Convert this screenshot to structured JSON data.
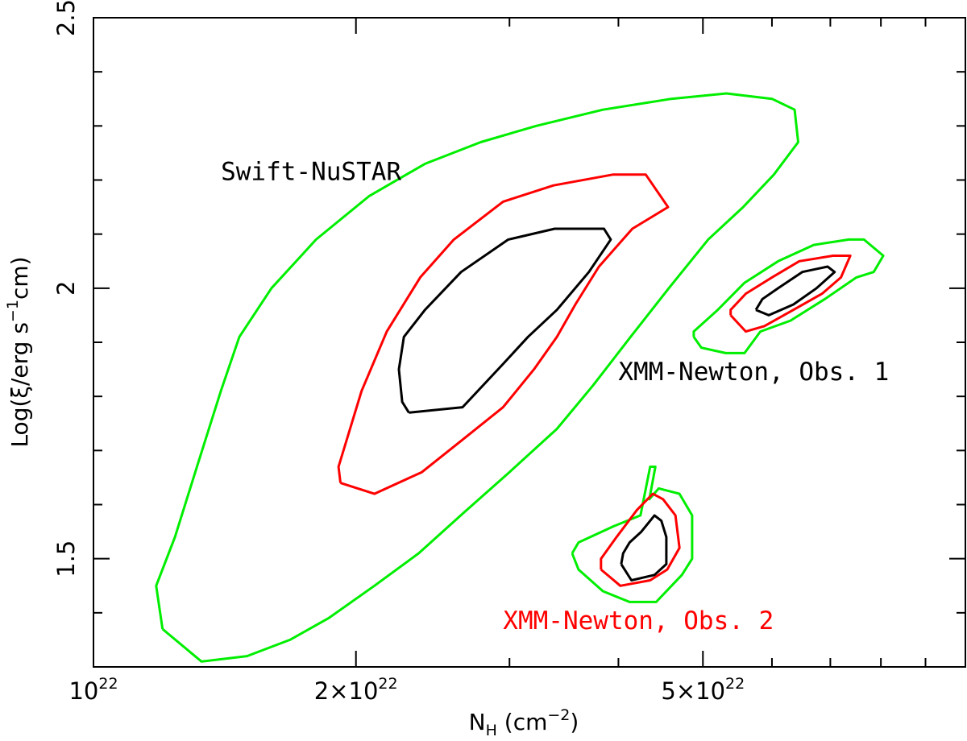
{
  "chart_data": {
    "type": "contour",
    "title": "",
    "xlabel": {
      "main": "N",
      "sub": "H",
      "units": " (cm",
      "exp": "−2",
      "close": ")"
    },
    "ylabel": {
      "pre": "Log(ξ/erg s",
      "exp": "−1",
      "post": "cm)"
    },
    "xscale": "log",
    "xlim": [
      1e+22,
      1e+23
    ],
    "ylim": [
      1.3,
      2.5
    ],
    "x_tick_labels": [
      {
        "value": 1e+22,
        "base": "10",
        "exp": "22"
      },
      {
        "value": 2e+22,
        "base": "2×10",
        "exp": "22"
      },
      {
        "value": 5e+22,
        "base": "5×10",
        "exp": "22"
      }
    ],
    "y_tick_labels": [
      {
        "value": 1.5,
        "label": "1.5"
      },
      {
        "value": 2.0,
        "label": "2"
      },
      {
        "value": 2.5,
        "label": "2.5"
      }
    ],
    "colors": {
      "inner": "#000000",
      "middle": "#ff0000",
      "outer": "#00ee00"
    },
    "annotations": [
      {
        "text": "Swift-NuSTAR",
        "color": "#000000",
        "at": [
          1.4e+22,
          2.2
        ]
      },
      {
        "text": "XMM-Newton, Obs. 1",
        "color": "#000000",
        "at": [
          4e+22,
          1.83
        ]
      },
      {
        "text": "XMM-Newton, Obs. 2",
        "color": "#ff0000",
        "at": [
          2.95e+22,
          1.37
        ]
      }
    ],
    "series": [
      {
        "name": "Swift-NuSTAR outer",
        "level": "outer",
        "points": [
          [
            1.2e+22,
            1.37
          ],
          [
            1.33e+22,
            1.31
          ],
          [
            1.5e+22,
            1.32
          ],
          [
            1.68e+22,
            1.35
          ],
          [
            1.86e+22,
            1.39
          ],
          [
            2.1e+22,
            1.45
          ],
          [
            2.36e+22,
            1.51
          ],
          [
            2.68e+22,
            1.59
          ],
          [
            3e+22,
            1.66
          ],
          [
            3.4e+22,
            1.74
          ],
          [
            3.74e+22,
            1.82
          ],
          [
            4.13e+22,
            1.91
          ],
          [
            4.57e+22,
            2.0
          ],
          [
            5.07e+22,
            2.09
          ],
          [
            5.56e+22,
            2.15
          ],
          [
            6.03e+22,
            2.21
          ],
          [
            6.43e+22,
            2.27
          ],
          [
            6.37e+22,
            2.33
          ],
          [
            6e+22,
            2.35
          ],
          [
            5.32e+22,
            2.36
          ],
          [
            4.6e+22,
            2.35
          ],
          [
            3.84e+22,
            2.33
          ],
          [
            3.22e+22,
            2.3
          ],
          [
            2.78e+22,
            2.27
          ],
          [
            2.4e+22,
            2.23
          ],
          [
            2.07e+22,
            2.17
          ],
          [
            1.8e+22,
            2.09
          ],
          [
            1.6e+22,
            2.0
          ],
          [
            1.47e+22,
            1.91
          ],
          [
            1.4e+22,
            1.81
          ],
          [
            1.32e+22,
            1.68
          ],
          [
            1.24e+22,
            1.54
          ],
          [
            1.18e+22,
            1.45
          ],
          [
            1.2e+22,
            1.37
          ]
        ]
      },
      {
        "name": "Swift-NuSTAR middle",
        "level": "middle",
        "points": [
          [
            1.92e+22,
            1.64
          ],
          [
            2.1e+22,
            1.62
          ],
          [
            2.38e+22,
            1.66
          ],
          [
            2.65e+22,
            1.72
          ],
          [
            2.95e+22,
            1.78
          ],
          [
            3.2e+22,
            1.85
          ],
          [
            3.4e+22,
            1.91
          ],
          [
            3.57e+22,
            1.97
          ],
          [
            3.8e+22,
            2.04
          ],
          [
            4.15e+22,
            2.11
          ],
          [
            4.56e+22,
            2.15
          ],
          [
            4.3e+22,
            2.21
          ],
          [
            3.94e+22,
            2.21
          ],
          [
            3.37e+22,
            2.19
          ],
          [
            2.95e+22,
            2.16
          ],
          [
            2.59e+22,
            2.09
          ],
          [
            2.37e+22,
            2.02
          ],
          [
            2.17e+22,
            1.92
          ],
          [
            2.03e+22,
            1.81
          ],
          [
            1.91e+22,
            1.67
          ],
          [
            1.92e+22,
            1.64
          ]
        ]
      },
      {
        "name": "Swift-NuSTAR inner",
        "level": "inner",
        "points": [
          [
            2.3e+22,
            1.77
          ],
          [
            2.65e+22,
            1.78
          ],
          [
            2.95e+22,
            1.86
          ],
          [
            3.15e+22,
            1.91
          ],
          [
            3.4e+22,
            1.96
          ],
          [
            3.7e+22,
            2.03
          ],
          [
            3.92e+22,
            2.09
          ],
          [
            3.85e+22,
            2.11
          ],
          [
            3.38e+22,
            2.11
          ],
          [
            2.99e+22,
            2.09
          ],
          [
            2.64e+22,
            2.03
          ],
          [
            2.4e+22,
            1.96
          ],
          [
            2.27e+22,
            1.91
          ],
          [
            2.24e+22,
            1.85
          ],
          [
            2.26e+22,
            1.79
          ],
          [
            2.3e+22,
            1.77
          ]
        ]
      },
      {
        "name": "XMM-Newton Obs. 1 outer",
        "level": "outer",
        "points": [
          [
            4.88e+22,
            1.91
          ],
          [
            4.98e+22,
            1.89
          ],
          [
            5.31e+22,
            1.88
          ],
          [
            5.58e+22,
            1.88
          ],
          [
            5.82e+22,
            1.92
          ],
          [
            6.3e+22,
            1.94
          ],
          [
            6.9e+22,
            1.98
          ],
          [
            7.5e+22,
            2.02
          ],
          [
            7.85e+22,
            2.03
          ],
          [
            8.05e+22,
            2.06
          ],
          [
            7.65e+22,
            2.09
          ],
          [
            7.35e+22,
            2.09
          ],
          [
            6.7e+22,
            2.08
          ],
          [
            6.1e+22,
            2.05
          ],
          [
            5.58e+22,
            2.01
          ],
          [
            5.2e+22,
            1.96
          ],
          [
            4.88e+22,
            1.92
          ],
          [
            4.88e+22,
            1.91
          ]
        ]
      },
      {
        "name": "XMM-Newton Obs. 1 middle",
        "level": "middle",
        "points": [
          [
            5.38e+22,
            1.95
          ],
          [
            5.6e+22,
            1.92
          ],
          [
            5.88e+22,
            1.93
          ],
          [
            6.35e+22,
            1.96
          ],
          [
            6.85e+22,
            1.99
          ],
          [
            7.2e+22,
            2.02
          ],
          [
            7.38e+22,
            2.06
          ],
          [
            7.05e+22,
            2.06
          ],
          [
            6.45e+22,
            2.05
          ],
          [
            6e+22,
            2.02
          ],
          [
            5.6e+22,
            1.99
          ],
          [
            5.38e+22,
            1.96
          ],
          [
            5.38e+22,
            1.95
          ]
        ]
      },
      {
        "name": "XMM-Newton Obs. 1 inner",
        "level": "inner",
        "points": [
          [
            5.75e+22,
            1.96
          ],
          [
            5.95e+22,
            1.95
          ],
          [
            6.35e+22,
            1.97
          ],
          [
            6.75e+22,
            2.0
          ],
          [
            7.08e+22,
            2.03
          ],
          [
            6.95e+22,
            2.04
          ],
          [
            6.5e+22,
            2.03
          ],
          [
            6.1e+22,
            2.0
          ],
          [
            5.85e+22,
            1.98
          ],
          [
            5.75e+22,
            1.96
          ]
        ]
      },
      {
        "name": "XMM-Newton Obs. 2 outer",
        "level": "outer",
        "points": [
          [
            3.54e+22,
            1.51
          ],
          [
            3.6e+22,
            1.48
          ],
          [
            3.84e+22,
            1.44
          ],
          [
            4.12e+22,
            1.42
          ],
          [
            4.42e+22,
            1.42
          ],
          [
            4.73e+22,
            1.47
          ],
          [
            4.86e+22,
            1.5
          ],
          [
            4.86e+22,
            1.58
          ],
          [
            4.7e+22,
            1.62
          ],
          [
            4.45e+22,
            1.63
          ],
          [
            4.34e+22,
            1.61
          ],
          [
            4.41e+22,
            1.67
          ],
          [
            4.35e+22,
            1.67
          ],
          [
            4.24e+22,
            1.58
          ],
          [
            3.95e+22,
            1.56
          ],
          [
            3.6e+22,
            1.53
          ],
          [
            3.54e+22,
            1.51
          ]
        ]
      },
      {
        "name": "XMM-Newton Obs. 2 middle",
        "level": "middle",
        "points": [
          [
            3.82e+22,
            1.48
          ],
          [
            4.02e+22,
            1.45
          ],
          [
            4.35e+22,
            1.46
          ],
          [
            4.55e+22,
            1.48
          ],
          [
            4.7e+22,
            1.52
          ],
          [
            4.65e+22,
            1.58
          ],
          [
            4.5e+22,
            1.61
          ],
          [
            4.38e+22,
            1.62
          ],
          [
            4.2e+22,
            1.59
          ],
          [
            3.98e+22,
            1.54
          ],
          [
            3.82e+22,
            1.5
          ],
          [
            3.82e+22,
            1.48
          ]
        ]
      },
      {
        "name": "XMM-Newton Obs. 2 inner",
        "level": "inner",
        "points": [
          [
            4.03e+22,
            1.49
          ],
          [
            4.14e+22,
            1.46
          ],
          [
            4.4e+22,
            1.47
          ],
          [
            4.54e+22,
            1.49
          ],
          [
            4.54e+22,
            1.54
          ],
          [
            4.48e+22,
            1.57
          ],
          [
            4.4e+22,
            1.58
          ],
          [
            4.25e+22,
            1.55
          ],
          [
            4.12e+22,
            1.53
          ],
          [
            4.05e+22,
            1.51
          ],
          [
            4.03e+22,
            1.49
          ]
        ]
      }
    ]
  }
}
